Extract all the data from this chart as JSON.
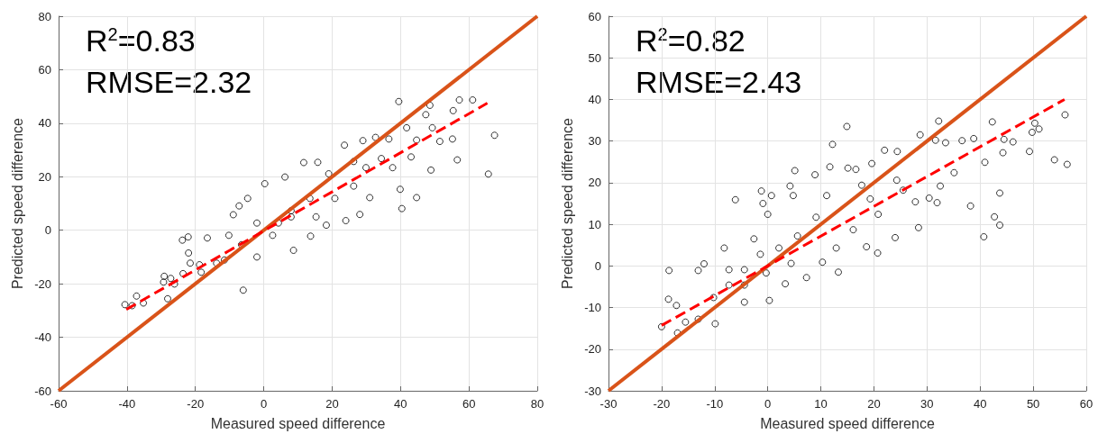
{
  "chart_data": [
    {
      "type": "scatter",
      "xlabel": "Measured speed difference",
      "ylabel": "Predicted speed difference",
      "annotations": [
        "R$^{2}$=0.83",
        "RMSE=2.32"
      ],
      "xlim": [
        -60,
        80
      ],
      "xticks": [
        -60,
        -40,
        -20,
        0,
        20,
        40,
        60,
        80
      ],
      "ylim": [
        -60,
        80
      ],
      "yticks": [
        -60,
        -40,
        -20,
        0,
        20,
        40,
        60,
        80
      ],
      "grid": true,
      "marker": "circle",
      "series": [
        {
          "type": "scatter",
          "color": "#000000",
          "x": [
            -40.6,
            -38.5,
            -37.2,
            -35.2,
            -29.1,
            -29.3,
            -27.2,
            -26.1,
            -28.1,
            -23.8,
            -22.1,
            -22.0,
            -21.5,
            -23.6,
            -6.0,
            8.7,
            39.5,
            57.2,
            61.1,
            55.4,
            48.6,
            47.4,
            41.8,
            49.3,
            67.5,
            65.7,
            56.6,
            55.2,
            51.5,
            48.9,
            44.7,
            40.4,
            39.9,
            43.1,
            44.7,
            36.6,
            32.7,
            29.0,
            23.6,
            37.7,
            31.0,
            28.1,
            24.0,
            18.3,
            13.7,
            11.7,
            15.8,
            6.2,
            0.3,
            -7.2,
            -8.9,
            -16.5,
            -18.8,
            -13.8,
            -2.0,
            2.6,
            8.0,
            20.8,
            26.3,
            -2.0,
            -6.5,
            -10.2,
            13.5,
            19.0,
            29.9,
            -4.7,
            -18.3,
            -11.5,
            4.3,
            8.0,
            15.3,
            34.4,
            26.3
          ],
          "values": [
            -27.8,
            -28.2,
            -24.6,
            -27.2,
            -17.2,
            -19.4,
            -18.0,
            -20.1,
            -25.6,
            -3.7,
            -2.5,
            -8.5,
            -12.3,
            -16.2,
            -22.4,
            -7.5,
            48.1,
            48.7,
            48.7,
            44.7,
            46.7,
            43.2,
            38.3,
            38.3,
            35.5,
            21.0,
            26.3,
            34.1,
            33.2,
            22.5,
            12.2,
            8.1,
            15.3,
            27.4,
            33.7,
            34.1,
            34.7,
            33.5,
            31.8,
            23.4,
            12.2,
            5.9,
            3.6,
            1.9,
            -2.2,
            25.3,
            25.4,
            19.9,
            17.4,
            9.1,
            5.8,
            -2.9,
            -12.9,
            -12.3,
            -10.0,
            -1.9,
            5.0,
            11.9,
            16.5,
            2.7,
            -5.4,
            -1.9,
            11.9,
            21.1,
            23.4,
            11.9,
            -15.7,
            -11.1,
            2.7,
            7.3,
            5.0,
            26.8,
            25.7
          ]
        },
        {
          "type": "line",
          "color": "#d95319",
          "marker": "none",
          "line_style": "solid",
          "x": [
            -60,
            80
          ],
          "values": [
            -60,
            80
          ]
        },
        {
          "type": "line",
          "color": "#ff0000",
          "marker": "none",
          "line_style": "dashed",
          "x": [
            -40.2,
            65.4
          ],
          "values": [
            -29.6,
            47.5
          ]
        }
      ]
    },
    {
      "type": "scatter",
      "xlabel": "Measured speed difference",
      "ylabel": "Predicted speed difference",
      "annotations": [
        "R$^{2}$=0.82",
        "RMSE=2.43"
      ],
      "xlim": [
        -30,
        60
      ],
      "xticks": [
        -30,
        -20,
        -10,
        0,
        10,
        20,
        30,
        40,
        50,
        60
      ],
      "ylim": [
        -30,
        60
      ],
      "yticks": [
        -30,
        -20,
        -10,
        0,
        10,
        20,
        30,
        40,
        50,
        60
      ],
      "grid": true,
      "marker": "circle",
      "series": [
        {
          "type": "scatter",
          "color": "#000000",
          "x": [
            -20.0,
            -18.6,
            -18.7,
            -17.2,
            -13.1,
            -12.0,
            -8.2,
            -6.1,
            -1.2,
            0.7,
            -0.9,
            0.0,
            4.2,
            5.1,
            4.8,
            8.9,
            11.1,
            11.7,
            12.2,
            14.9,
            15.1,
            16.6,
            17.7,
            19.6,
            22.0,
            24.4,
            28.7,
            32.2,
            31.6,
            33.5,
            36.6,
            38.8,
            42.3,
            44.5,
            46.2,
            50.3,
            51.1,
            49.8,
            49.3,
            44.3,
            40.9,
            56.0,
            54.0,
            56.4,
            43.7,
            38.2,
            42.7,
            43.7,
            40.7,
            28.4,
            27.8,
            30.4,
            31.9,
            32.5,
            35.1,
            25.5,
            24.3,
            20.8,
            24.0,
            20.7,
            18.6,
            13.3,
            10.3,
            12.9,
            16.1,
            19.3,
            7.3,
            3.3,
            0.3,
            -4.4,
            -9.9,
            -13.1,
            -17.0,
            -15.5,
            -4.4,
            -1.4,
            2.1,
            5.6,
            9.1,
            -4.4,
            -7.3,
            -10.2,
            4.4,
            -0.3,
            -2.6,
            -7.3
          ],
          "values": [
            -14.6,
            -1.1,
            -8.0,
            -9.5,
            -1.1,
            0.5,
            4.3,
            15.9,
            18.0,
            16.9,
            15.0,
            12.4,
            19.2,
            22.9,
            16.9,
            21.9,
            16.9,
            23.8,
            29.2,
            33.5,
            23.5,
            23.2,
            19.4,
            24.6,
            27.8,
            27.5,
            31.5,
            34.8,
            30.2,
            29.6,
            30.1,
            30.6,
            34.6,
            30.4,
            29.8,
            34.3,
            32.9,
            32.1,
            27.5,
            27.2,
            24.9,
            36.3,
            25.5,
            24.4,
            17.5,
            14.4,
            11.8,
            9.8,
            7.0,
            9.2,
            15.4,
            16.3,
            15.2,
            19.2,
            22.4,
            18.2,
            20.6,
            12.4,
            6.8,
            3.1,
            4.6,
            -1.5,
            0.9,
            4.3,
            8.7,
            16.1,
            -2.8,
            -4.3,
            -8.3,
            -8.7,
            -13.9,
            -12.8,
            -16.1,
            -13.5,
            -0.9,
            2.8,
            4.3,
            7.2,
            11.7,
            -4.6,
            -4.6,
            -7.6,
            0.6,
            -1.7,
            6.5,
            -0.9
          ]
        },
        {
          "type": "line",
          "color": "#d95319",
          "marker": "none",
          "line_style": "solid",
          "x": [
            -30,
            60
          ],
          "values": [
            -30,
            60
          ]
        },
        {
          "type": "line",
          "color": "#ff0000",
          "marker": "none",
          "line_style": "dashed",
          "x": [
            -20.0,
            55.9
          ],
          "values": [
            -14.3,
            40.0
          ]
        }
      ]
    }
  ]
}
